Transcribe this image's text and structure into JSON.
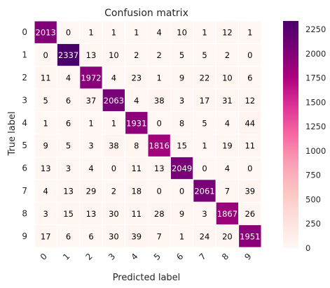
{
  "chart_data": {
    "type": "heatmap",
    "title": "Confusion matrix",
    "xlabel": "Predicted label",
    "ylabel": "True label",
    "x_categories": [
      "0",
      "1",
      "2",
      "3",
      "4",
      "5",
      "6",
      "7",
      "8",
      "9"
    ],
    "y_categories": [
      "0",
      "1",
      "2",
      "3",
      "4",
      "5",
      "6",
      "7",
      "8",
      "9"
    ],
    "matrix": [
      [
        2013,
        0,
        1,
        1,
        1,
        4,
        10,
        1,
        12,
        1
      ],
      [
        0,
        2337,
        13,
        10,
        2,
        2,
        5,
        5,
        2,
        0
      ],
      [
        11,
        4,
        1972,
        4,
        23,
        1,
        9,
        22,
        10,
        6
      ],
      [
        5,
        6,
        37,
        2063,
        4,
        38,
        3,
        17,
        31,
        12
      ],
      [
        1,
        6,
        1,
        1,
        1931,
        0,
        8,
        5,
        4,
        44
      ],
      [
        9,
        5,
        3,
        38,
        8,
        1816,
        15,
        1,
        19,
        11
      ],
      [
        13,
        3,
        4,
        0,
        11,
        13,
        2049,
        0,
        4,
        0
      ],
      [
        4,
        13,
        29,
        2,
        18,
        0,
        0,
        2061,
        7,
        39
      ],
      [
        3,
        15,
        13,
        30,
        11,
        28,
        9,
        3,
        1867,
        26
      ],
      [
        17,
        6,
        6,
        30,
        39,
        7,
        1,
        24,
        20,
        1951
      ]
    ],
    "colorbar": {
      "colormap": "RdPu",
      "min": 0,
      "max": 2337,
      "ticks": [
        0,
        250,
        500,
        750,
        1000,
        1250,
        1500,
        1750,
        2000,
        2250
      ]
    },
    "grid": true
  }
}
